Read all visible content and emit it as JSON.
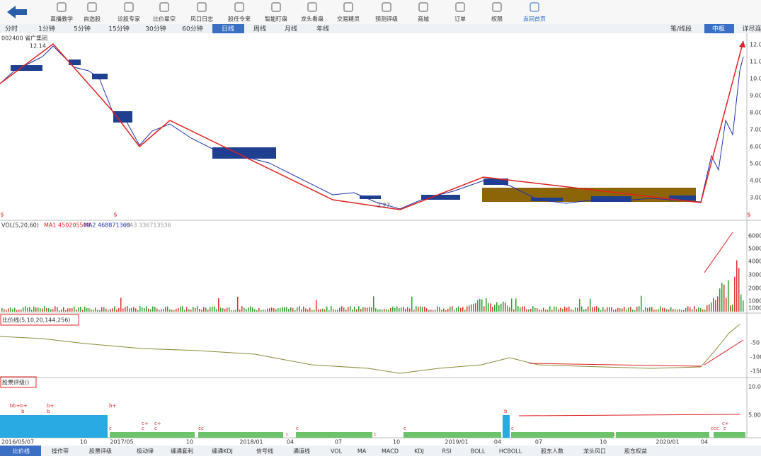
{
  "toolbar": {
    "items": [
      "直播教学",
      "自选股",
      "诊股专家",
      "比价星空",
      "风口日志",
      "股任令来",
      "智能盯盘",
      "龙头看盘",
      "交易精灵",
      "预测评级",
      "商城",
      "订单",
      "权限",
      "返回首页"
    ]
  },
  "period_tabs": [
    "分时",
    "1分钟",
    "5分钟",
    "15分钟",
    "30分钟",
    "60分钟",
    "日线",
    "周线",
    "月线",
    "年线"
  ],
  "right_tabs": [
    "笔/线段",
    "中枢",
    "详尽连"
  ],
  "stock": {
    "label": "002400 省广集团"
  },
  "main_chart": {
    "high_label": "12.14",
    "low_label": "2.27",
    "yticks": [
      "12.00",
      "11.00",
      "10.00",
      "9.00",
      "8.00",
      "7.00",
      "6.00",
      "5.00",
      "4.00",
      "3.00"
    ],
    "signals": [
      "$",
      "$",
      "$"
    ]
  },
  "volume": {
    "name": "VOL(5,20,60)",
    "ma1": "MA1 450205504",
    "ma2": "MA2 468871360",
    "ma3": "MA3 336713536",
    "yticks": [
      "60000",
      "50000",
      "40000",
      "30000",
      "20000",
      "10000",
      "1000"
    ]
  },
  "indicator": {
    "title": "比价线(5,10,20,144,256)",
    "yticks": [
      "-50",
      "-100",
      "-150"
    ]
  },
  "rating": {
    "title": "股票评级()",
    "yticks": [
      "10.00",
      "5.00"
    ],
    "labels": [
      "bb+b+",
      "b",
      "b+",
      "b",
      "b+",
      "c",
      "c+",
      "c",
      "c+",
      "c",
      "cc",
      "c",
      "c",
      "c",
      "c",
      "b",
      "c",
      "c",
      "ccc",
      "c+",
      "c"
    ]
  },
  "dates": [
    "2016/05/07",
    "10",
    "2017/05",
    "10",
    "2018/01",
    "04",
    "07",
    "10",
    "2019/01",
    "04",
    "07",
    "10",
    "2020/01",
    "04"
  ],
  "bottom_tabs": [
    "比价线",
    "操作带",
    "股票评级",
    "极动律",
    "缠通套利",
    "缠通KDJ",
    "信号线",
    "通道线",
    "VOL",
    "MA",
    "MACD",
    "KDJ",
    "RSI",
    "BOLL",
    "HCBOLL",
    "股东人数",
    "龙头风口",
    "股东权益"
  ]
}
